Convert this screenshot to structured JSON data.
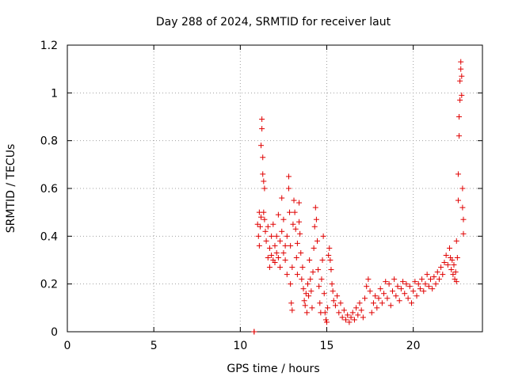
{
  "chart_data": {
    "type": "scatter",
    "title": "Day 288 of 2024, SRMTID for receiver laut",
    "xlabel": "GPS time / hours",
    "ylabel": "SRMTID / TECUs",
    "xlim": [
      0,
      24
    ],
    "ylim": [
      0,
      1.2
    ],
    "xticks": [
      {
        "value": 0,
        "label": "0"
      },
      {
        "value": 5,
        "label": "5"
      },
      {
        "value": 10,
        "label": "10"
      },
      {
        "value": 15,
        "label": "15"
      },
      {
        "value": 20,
        "label": "20"
      }
    ],
    "yticks": [
      {
        "value": 0,
        "label": "0"
      },
      {
        "value": 0.2,
        "label": "0.2"
      },
      {
        "value": 0.4,
        "label": "0.4"
      },
      {
        "value": 0.6,
        "label": "0.6"
      },
      {
        "value": 0.8,
        "label": "0.8"
      },
      {
        "value": 1.0,
        "label": "1"
      },
      {
        "value": 1.2,
        "label": "1.2"
      }
    ],
    "grid": true,
    "marker": "+",
    "color": "#e00000",
    "series": [
      {
        "name": "SRMTID",
        "points": [
          [
            10.8,
            0.0
          ],
          [
            10.8,
            0.0
          ],
          [
            11.0,
            0.45
          ],
          [
            11.05,
            0.4
          ],
          [
            11.1,
            0.36
          ],
          [
            11.1,
            0.5
          ],
          [
            11.15,
            0.44
          ],
          [
            11.2,
            0.48
          ],
          [
            11.2,
            0.78
          ],
          [
            11.25,
            0.89
          ],
          [
            11.25,
            0.85
          ],
          [
            11.3,
            0.73
          ],
          [
            11.3,
            0.66
          ],
          [
            11.35,
            0.63
          ],
          [
            11.4,
            0.6
          ],
          [
            11.35,
            0.5
          ],
          [
            11.4,
            0.47
          ],
          [
            11.45,
            0.42
          ],
          [
            11.5,
            0.38
          ],
          [
            11.6,
            0.31
          ],
          [
            11.6,
            0.44
          ],
          [
            11.7,
            0.35
          ],
          [
            11.7,
            0.27
          ],
          [
            11.8,
            0.4
          ],
          [
            11.8,
            0.32
          ],
          [
            11.9,
            0.3
          ],
          [
            11.9,
            0.45
          ],
          [
            12.0,
            0.36
          ],
          [
            12.0,
            0.29
          ],
          [
            12.1,
            0.4
          ],
          [
            12.1,
            0.33
          ],
          [
            12.2,
            0.49
          ],
          [
            12.2,
            0.31
          ],
          [
            12.3,
            0.27
          ],
          [
            12.3,
            0.38
          ],
          [
            12.4,
            0.56
          ],
          [
            12.4,
            0.42
          ],
          [
            12.5,
            0.33
          ],
          [
            12.5,
            0.47
          ],
          [
            12.6,
            0.36
          ],
          [
            12.6,
            0.3
          ],
          [
            12.7,
            0.24
          ],
          [
            12.7,
            0.4
          ],
          [
            12.8,
            0.65
          ],
          [
            12.8,
            0.6
          ],
          [
            12.85,
            0.5
          ],
          [
            12.9,
            0.36
          ],
          [
            12.9,
            0.2
          ],
          [
            12.95,
            0.12
          ],
          [
            13.0,
            0.09
          ],
          [
            13.0,
            0.27
          ],
          [
            13.05,
            0.45
          ],
          [
            13.1,
            0.55
          ],
          [
            13.15,
            0.5
          ],
          [
            13.2,
            0.43
          ],
          [
            13.25,
            0.31
          ],
          [
            13.3,
            0.24
          ],
          [
            13.3,
            0.37
          ],
          [
            13.4,
            0.46
          ],
          [
            13.4,
            0.54
          ],
          [
            13.45,
            0.41
          ],
          [
            13.5,
            0.33
          ],
          [
            13.55,
            0.22
          ],
          [
            13.6,
            0.27
          ],
          [
            13.65,
            0.18
          ],
          [
            13.7,
            0.13
          ],
          [
            13.75,
            0.11
          ],
          [
            13.8,
            0.16
          ],
          [
            13.85,
            0.08
          ],
          [
            13.9,
            0.2
          ],
          [
            13.95,
            0.15
          ],
          [
            14.0,
            0.3
          ],
          [
            14.05,
            0.22
          ],
          [
            14.1,
            0.17
          ],
          [
            14.15,
            0.1
          ],
          [
            14.2,
            0.25
          ],
          [
            14.25,
            0.35
          ],
          [
            14.3,
            0.44
          ],
          [
            14.35,
            0.52
          ],
          [
            14.4,
            0.47
          ],
          [
            14.45,
            0.38
          ],
          [
            14.5,
            0.26
          ],
          [
            14.55,
            0.19
          ],
          [
            14.6,
            0.12
          ],
          [
            14.65,
            0.08
          ],
          [
            14.7,
            0.22
          ],
          [
            14.75,
            0.3
          ],
          [
            14.8,
            0.4
          ],
          [
            14.85,
            0.16
          ],
          [
            14.9,
            0.08
          ],
          [
            14.95,
            0.05
          ],
          [
            15.0,
            0.04
          ],
          [
            15.05,
            0.1
          ],
          [
            15.1,
            0.32
          ],
          [
            15.15,
            0.35
          ],
          [
            15.2,
            0.3
          ],
          [
            15.25,
            0.26
          ],
          [
            15.3,
            0.2
          ],
          [
            15.35,
            0.17
          ],
          [
            15.4,
            0.13
          ],
          [
            15.5,
            0.11
          ],
          [
            15.6,
            0.15
          ],
          [
            15.7,
            0.08
          ],
          [
            15.8,
            0.12
          ],
          [
            15.9,
            0.06
          ],
          [
            16.0,
            0.09
          ],
          [
            16.1,
            0.05
          ],
          [
            16.2,
            0.07
          ],
          [
            16.3,
            0.04
          ],
          [
            16.4,
            0.06
          ],
          [
            16.5,
            0.08
          ],
          [
            16.6,
            0.05
          ],
          [
            16.7,
            0.1
          ],
          [
            16.8,
            0.07
          ],
          [
            16.9,
            0.12
          ],
          [
            17.0,
            0.09
          ],
          [
            17.1,
            0.06
          ],
          [
            17.2,
            0.14
          ],
          [
            17.3,
            0.19
          ],
          [
            17.4,
            0.22
          ],
          [
            17.5,
            0.17
          ],
          [
            17.6,
            0.08
          ],
          [
            17.7,
            0.12
          ],
          [
            17.8,
            0.15
          ],
          [
            17.9,
            0.1
          ],
          [
            18.0,
            0.14
          ],
          [
            18.1,
            0.18
          ],
          [
            18.2,
            0.12
          ],
          [
            18.3,
            0.16
          ],
          [
            18.4,
            0.21
          ],
          [
            18.5,
            0.14
          ],
          [
            18.6,
            0.2
          ],
          [
            18.7,
            0.11
          ],
          [
            18.8,
            0.17
          ],
          [
            18.9,
            0.22
          ],
          [
            19.0,
            0.15
          ],
          [
            19.1,
            0.19
          ],
          [
            19.2,
            0.13
          ],
          [
            19.3,
            0.18
          ],
          [
            19.4,
            0.21
          ],
          [
            19.5,
            0.16
          ],
          [
            19.6,
            0.2
          ],
          [
            19.7,
            0.14
          ],
          [
            19.8,
            0.19
          ],
          [
            19.9,
            0.12
          ],
          [
            20.0,
            0.17
          ],
          [
            20.1,
            0.21
          ],
          [
            20.2,
            0.15
          ],
          [
            20.3,
            0.2
          ],
          [
            20.4,
            0.18
          ],
          [
            20.5,
            0.22
          ],
          [
            20.6,
            0.17
          ],
          [
            20.7,
            0.2
          ],
          [
            20.8,
            0.24
          ],
          [
            20.9,
            0.19
          ],
          [
            21.0,
            0.22
          ],
          [
            21.1,
            0.18
          ],
          [
            21.2,
            0.23
          ],
          [
            21.3,
            0.2
          ],
          [
            21.4,
            0.25
          ],
          [
            21.5,
            0.22
          ],
          [
            21.6,
            0.27
          ],
          [
            21.7,
            0.24
          ],
          [
            21.8,
            0.29
          ],
          [
            21.9,
            0.32
          ],
          [
            22.0,
            0.28
          ],
          [
            22.1,
            0.35
          ],
          [
            22.15,
            0.31
          ],
          [
            22.2,
            0.26
          ],
          [
            22.25,
            0.3
          ],
          [
            22.3,
            0.24
          ],
          [
            22.35,
            0.28
          ],
          [
            22.4,
            0.22
          ],
          [
            22.45,
            0.25
          ],
          [
            22.5,
            0.21
          ],
          [
            22.5,
            0.38
          ],
          [
            22.55,
            0.31
          ],
          [
            22.6,
            0.66
          ],
          [
            22.6,
            0.55
          ],
          [
            22.65,
            0.82
          ],
          [
            22.65,
            0.9
          ],
          [
            22.7,
            0.97
          ],
          [
            22.7,
            1.05
          ],
          [
            22.75,
            1.13
          ],
          [
            22.75,
            1.1
          ],
          [
            22.8,
            1.07
          ],
          [
            22.8,
            0.99
          ],
          [
            22.85,
            0.6
          ],
          [
            22.85,
            0.52
          ],
          [
            22.9,
            0.47
          ],
          [
            22.9,
            0.41
          ]
        ]
      }
    ]
  }
}
